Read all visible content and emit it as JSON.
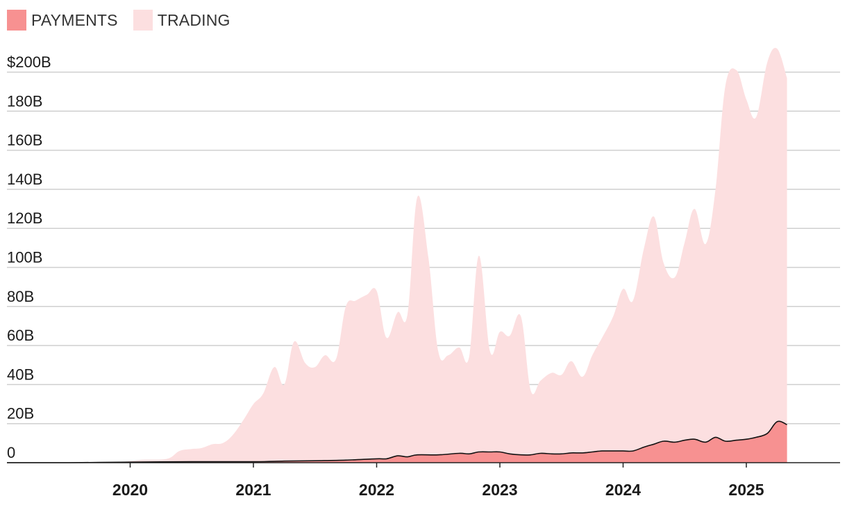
{
  "colors": {
    "payments": "#f79191",
    "trading": "#fcdfe0",
    "payments_line": "#111111",
    "grid": "#cfcfcf",
    "axis": "#222222"
  },
  "legend": {
    "payments_label": "PAYMENTS",
    "trading_label": "TRADING"
  },
  "chart_data": {
    "type": "area",
    "stacked": false,
    "ylim": [
      0,
      200
    ],
    "y_unit": "B",
    "xlim": [
      2019.0,
      2025.45
    ],
    "yticks": [
      {
        "value": 0,
        "label": "0"
      },
      {
        "value": 20,
        "label": "20B"
      },
      {
        "value": 40,
        "label": "40B"
      },
      {
        "value": 60,
        "label": "60B"
      },
      {
        "value": 80,
        "label": "80B"
      },
      {
        "value": 100,
        "label": "100B"
      },
      {
        "value": 120,
        "label": "120B"
      },
      {
        "value": 140,
        "label": "140B"
      },
      {
        "value": 160,
        "label": "160B"
      },
      {
        "value": 180,
        "label": "180B"
      },
      {
        "value": 200,
        "label": "$200B"
      }
    ],
    "xticks": [
      {
        "value": 2020,
        "label": "2020"
      },
      {
        "value": 2021,
        "label": "2021"
      },
      {
        "value": 2022,
        "label": "2022"
      },
      {
        "value": 2023,
        "label": "2023"
      },
      {
        "value": 2024,
        "label": "2024"
      },
      {
        "value": 2025,
        "label": "2025"
      }
    ],
    "grid": true,
    "legend_position": "top-left",
    "series": [
      {
        "name": "TRADING",
        "points": [
          [
            2019.0,
            0
          ],
          [
            2019.7,
            0
          ],
          [
            2019.95,
            0.5
          ],
          [
            2020.1,
            1.5
          ],
          [
            2020.3,
            2
          ],
          [
            2020.4,
            6
          ],
          [
            2020.5,
            7
          ],
          [
            2020.58,
            7.5
          ],
          [
            2020.67,
            9.5
          ],
          [
            2020.75,
            10
          ],
          [
            2020.83,
            14
          ],
          [
            2020.92,
            22
          ],
          [
            2021.0,
            30
          ],
          [
            2021.08,
            35.5
          ],
          [
            2021.17,
            49
          ],
          [
            2021.25,
            40
          ],
          [
            2021.33,
            62
          ],
          [
            2021.42,
            51
          ],
          [
            2021.5,
            49
          ],
          [
            2021.58,
            55
          ],
          [
            2021.67,
            53
          ],
          [
            2021.75,
            80
          ],
          [
            2021.83,
            83
          ],
          [
            2021.92,
            86
          ],
          [
            2022.0,
            88
          ],
          [
            2022.08,
            64
          ],
          [
            2022.17,
            77
          ],
          [
            2022.25,
            76
          ],
          [
            2022.33,
            136
          ],
          [
            2022.42,
            105
          ],
          [
            2022.5,
            57
          ],
          [
            2022.58,
            55
          ],
          [
            2022.67,
            59
          ],
          [
            2022.75,
            54
          ],
          [
            2022.83,
            106
          ],
          [
            2022.92,
            57
          ],
          [
            2023.0,
            67
          ],
          [
            2023.08,
            65
          ],
          [
            2023.17,
            75
          ],
          [
            2023.25,
            37
          ],
          [
            2023.33,
            42
          ],
          [
            2023.42,
            46
          ],
          [
            2023.5,
            45
          ],
          [
            2023.58,
            52
          ],
          [
            2023.67,
            44
          ],
          [
            2023.75,
            55
          ],
          [
            2023.83,
            64
          ],
          [
            2023.92,
            75
          ],
          [
            2024.0,
            89
          ],
          [
            2024.08,
            83
          ],
          [
            2024.17,
            110
          ],
          [
            2024.25,
            126
          ],
          [
            2024.33,
            102
          ],
          [
            2024.42,
            95
          ],
          [
            2024.5,
            113
          ],
          [
            2024.58,
            130
          ],
          [
            2024.67,
            112
          ],
          [
            2024.75,
            140
          ],
          [
            2024.83,
            193
          ],
          [
            2024.92,
            201
          ],
          [
            2025.0,
            186
          ],
          [
            2025.08,
            177
          ],
          [
            2025.17,
            205
          ],
          [
            2025.25,
            212
          ],
          [
            2025.33,
            197
          ]
        ]
      },
      {
        "name": "PAYMENTS",
        "points": [
          [
            2019.0,
            0
          ],
          [
            2019.5,
            0
          ],
          [
            2020.0,
            0.3
          ],
          [
            2020.5,
            0.5
          ],
          [
            2021.0,
            0.5
          ],
          [
            2021.25,
            0.8
          ],
          [
            2021.5,
            1
          ],
          [
            2021.75,
            1.3
          ],
          [
            2022.0,
            2
          ],
          [
            2022.08,
            2
          ],
          [
            2022.17,
            3.5
          ],
          [
            2022.25,
            3
          ],
          [
            2022.33,
            4
          ],
          [
            2022.5,
            4
          ],
          [
            2022.67,
            4.8
          ],
          [
            2022.75,
            4.5
          ],
          [
            2022.83,
            5.5
          ],
          [
            2022.92,
            5.5
          ],
          [
            2023.0,
            5.5
          ],
          [
            2023.08,
            4.5
          ],
          [
            2023.17,
            4
          ],
          [
            2023.25,
            4
          ],
          [
            2023.33,
            4.8
          ],
          [
            2023.42,
            4.5
          ],
          [
            2023.5,
            4.5
          ],
          [
            2023.58,
            5
          ],
          [
            2023.67,
            5
          ],
          [
            2023.75,
            5.5
          ],
          [
            2023.83,
            6
          ],
          [
            2023.92,
            6
          ],
          [
            2024.0,
            6
          ],
          [
            2024.08,
            6
          ],
          [
            2024.17,
            8
          ],
          [
            2024.25,
            9.5
          ],
          [
            2024.33,
            11
          ],
          [
            2024.42,
            10.5
          ],
          [
            2024.5,
            11.5
          ],
          [
            2024.58,
            12
          ],
          [
            2024.67,
            10.5
          ],
          [
            2024.75,
            13
          ],
          [
            2024.83,
            11
          ],
          [
            2024.92,
            11.5
          ],
          [
            2025.0,
            12
          ],
          [
            2025.08,
            13
          ],
          [
            2025.17,
            15
          ],
          [
            2025.25,
            21
          ],
          [
            2025.33,
            19.5
          ]
        ]
      }
    ]
  }
}
